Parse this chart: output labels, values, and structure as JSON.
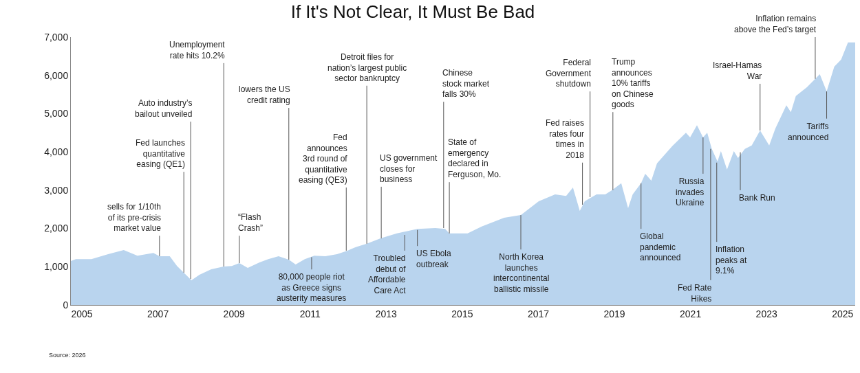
{
  "chart_data": {
    "type": "area",
    "title": "If It's Not Clear, It Must Be Bad",
    "x": [
      2004.71,
      2004.84,
      2005.25,
      2005.69,
      2006.1,
      2006.46,
      2006.88,
      2007.04,
      2007.31,
      2007.5,
      2007.68,
      2007.88,
      2008.09,
      2008.4,
      2008.73,
      2008.94,
      2009.14,
      2009.36,
      2009.67,
      2009.9,
      2010.17,
      2010.44,
      2010.62,
      2010.86,
      2011.11,
      2011.4,
      2011.71,
      2011.98,
      2012.2,
      2012.49,
      2012.85,
      2013.28,
      2013.82,
      2014.29,
      2014.55,
      2014.66,
      2015.14,
      2015.51,
      2016.1,
      2016.54,
      2017.01,
      2017.44,
      2017.73,
      2017.91,
      2018.09,
      2018.22,
      2018.53,
      2018.76,
      2018.94,
      2019.18,
      2019.36,
      2019.48,
      2019.7,
      2019.81,
      2019.97,
      2020.12,
      2020.52,
      2020.88,
      2020.99,
      2021.17,
      2021.33,
      2021.44,
      2021.56,
      2021.71,
      2021.8,
      2021.96,
      2022.14,
      2022.25,
      2022.43,
      2022.61,
      2022.83,
      2023.07,
      2023.23,
      2023.52,
      2023.64,
      2023.77,
      2024.06,
      2024.24,
      2024.4,
      2024.58,
      2024.78,
      2024.96,
      2025.14,
      2025.33
    ],
    "series": [
      {
        "color": "#b9d4ee",
        "values": [
          1150,
          1200,
          1200,
          1330,
          1436,
          1290,
          1360,
          1275,
          1275,
          1020,
          845,
          646,
          790,
          935,
          1005,
          1020,
          1095,
          970,
          1113,
          1200,
          1275,
          1185,
          1060,
          1200,
          1290,
          1275,
          1330,
          1420,
          1510,
          1600,
          1740,
          1870,
          1990,
          2010,
          1990,
          1870,
          1870,
          2050,
          2280,
          2350,
          2710,
          2890,
          2850,
          3070,
          2460,
          2710,
          2890,
          2890,
          3000,
          3180,
          2530,
          2890,
          3180,
          3430,
          3250,
          3700,
          4150,
          4500,
          4380,
          4700,
          4380,
          4500,
          4080,
          3750,
          4020,
          3540,
          4020,
          3840,
          4080,
          4170,
          4560,
          4170,
          4610,
          5220,
          5040,
          5460,
          5690,
          5870,
          6030,
          5580,
          6230,
          6410,
          6860,
          6860
        ]
      }
    ],
    "xlim": [
      2004.71,
      2025.33
    ],
    "xticks": [
      2005,
      2007,
      2009,
      2011,
      2013,
      2015,
      2017,
      2019,
      2021,
      2023,
      2025
    ],
    "ylim": [
      0,
      7000
    ],
    "yticks": [
      0,
      {
        "value": 1000,
        "label": "1,000"
      },
      {
        "value": 2000,
        "label": "2,000"
      },
      {
        "value": 3000,
        "label": "3,000"
      },
      {
        "value": 4000,
        "label": "4,000"
      },
      {
        "value": 5000,
        "label": "5,000"
      },
      {
        "value": 6000,
        "label": "6,000"
      },
      {
        "value": 7000,
        "label": "7,000"
      }
    ],
    "annotations": [
      {
        "text": "sells for 1/10th\nof its pre-crisis\nmarket value",
        "x": 2007.04,
        "y": 1275
      },
      {
        "text": "Fed launches\nquantitative\neasing (QE1)",
        "x": 2007.68,
        "y": 845
      },
      {
        "text": "Auto industry’s\nbailout unveiled",
        "x": 2007.86,
        "y": 680
      },
      {
        "text": "Unemployment\nrate hits 10.2%",
        "x": 2008.73,
        "y": 1005
      },
      {
        "text": "“Flash\nCrash”",
        "x": 2009.14,
        "y": 1095
      },
      {
        "text": "lowers the US\ncredit rating",
        "x": 2010.44,
        "y": 1185
      },
      {
        "text": "80,000 people riot\nas Greece signs\nausterity measures",
        "x": 2011.04,
        "y": 1250
      },
      {
        "text": "Fed\nannounces\n3rd round of\nquantitative\neasing (QE3)",
        "x": 2011.95,
        "y": 1420
      },
      {
        "text": "Detroit files for\nnation’s largest public\nsector bankruptcy",
        "x": 2012.49,
        "y": 1600
      },
      {
        "text": "US government\ncloses for\nbusiness",
        "x": 2012.87,
        "y": 1740
      },
      {
        "text": "Troubled\ndebut of\nAffordable\nCare Act",
        "x": 2013.49,
        "y": 1830
      },
      {
        "text": "US Ebola\noutbreak",
        "x": 2013.82,
        "y": 1960
      },
      {
        "text": "Chinese\nstock market\nfalls 30%",
        "x": 2014.51,
        "y": 2010
      },
      {
        "text": "State of\nemergency\ndeclared in\nFerguson, Mo.",
        "x": 2014.66,
        "y": 1870
      },
      {
        "text": "North Korea\nlaunches\nintercontinental\nballistic missile",
        "x": 2016.54,
        "y": 2350
      },
      {
        "text": "Fed raises\nrates four\ntimes in\n2018",
        "x": 2018.16,
        "y": 2620
      },
      {
        "text": "Federal\nGovernment\nshutdown",
        "x": 2018.36,
        "y": 2820
      },
      {
        "text": "Trump\nannounces\n10% tariffs\non Chinese\ngoods",
        "x": 2018.96,
        "y": 3000
      },
      {
        "text": "Global\npandemic\nannounced",
        "x": 2019.7,
        "y": 3180
      },
      {
        "text": "Russia\ninvades\nUkraine",
        "x": 2021.33,
        "y": 4380
      },
      {
        "text": "Fed Rate\nHikes",
        "x": 2021.53,
        "y": 4080
      },
      {
        "text": "Inflation\npeaks at\n9.1%",
        "x": 2021.69,
        "y": 3720
      },
      {
        "text": "Bank Run",
        "x": 2022.31,
        "y": 3990
      },
      {
        "text": "Israel-Hamas\nWar",
        "x": 2022.83,
        "y": 4560
      },
      {
        "text": "Inflation remains\nabove the Fed’s target",
        "x": 2024.28,
        "y": 5910
      },
      {
        "text": "Tariffs\nannounced",
        "x": 2024.58,
        "y": 5580
      },
      "Source: 2026"
    ]
  }
}
